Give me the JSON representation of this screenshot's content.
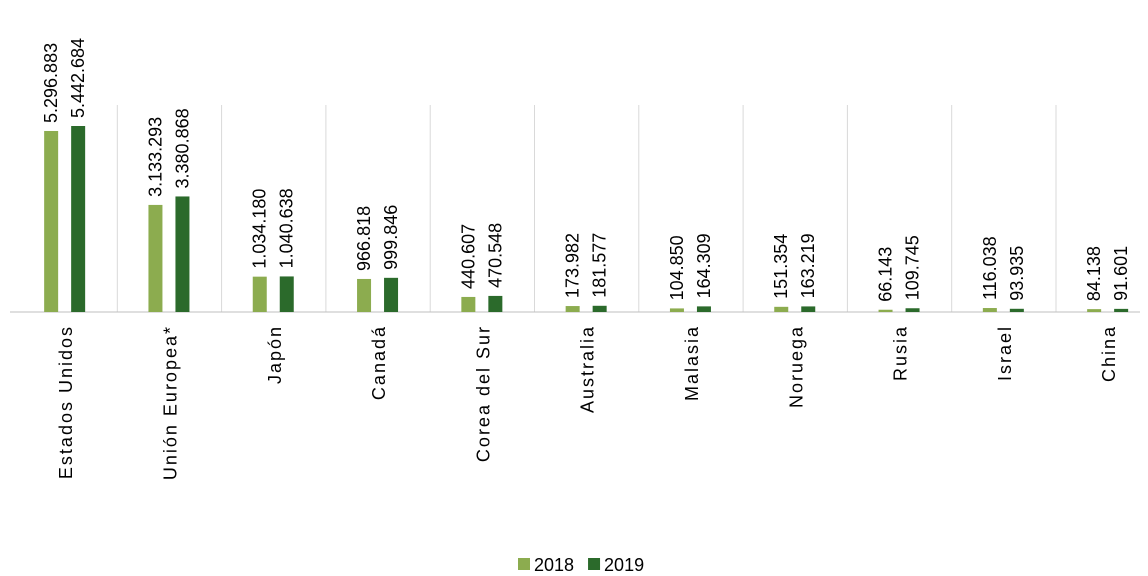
{
  "chart_data": {
    "type": "bar",
    "categories": [
      "Estados Unidos",
      "Unión Europea*",
      "Japón",
      "Canadá",
      "Corea del Sur",
      "Australia",
      "Malasia",
      "Noruega",
      "Rusia",
      "Israel",
      "China"
    ],
    "series": [
      {
        "name": "2018",
        "color": "#8cac4f",
        "values": [
          5296883,
          3133293,
          1034180,
          966818,
          440607,
          173982,
          104850,
          151354,
          66143,
          116038,
          84138
        ],
        "value_labels": [
          "5.296.883",
          "3.133.293",
          "1.034.180",
          "966.818",
          "440.607",
          "173.982",
          "104.850",
          "151.354",
          "66.143",
          "116.038",
          "84.138"
        ]
      },
      {
        "name": "2019",
        "color": "#2b6a2b",
        "values": [
          5442684,
          3380868,
          1040638,
          999846,
          470548,
          181577,
          164309,
          163219,
          109745,
          93935,
          91601
        ],
        "value_labels": [
          "5.442.684",
          "3.380.868",
          "1.040.638",
          "999.846",
          "470.548",
          "181.577",
          "164.309",
          "163.219",
          "109.745",
          "93.935",
          "91.601"
        ]
      }
    ],
    "legend": "bottom"
  }
}
